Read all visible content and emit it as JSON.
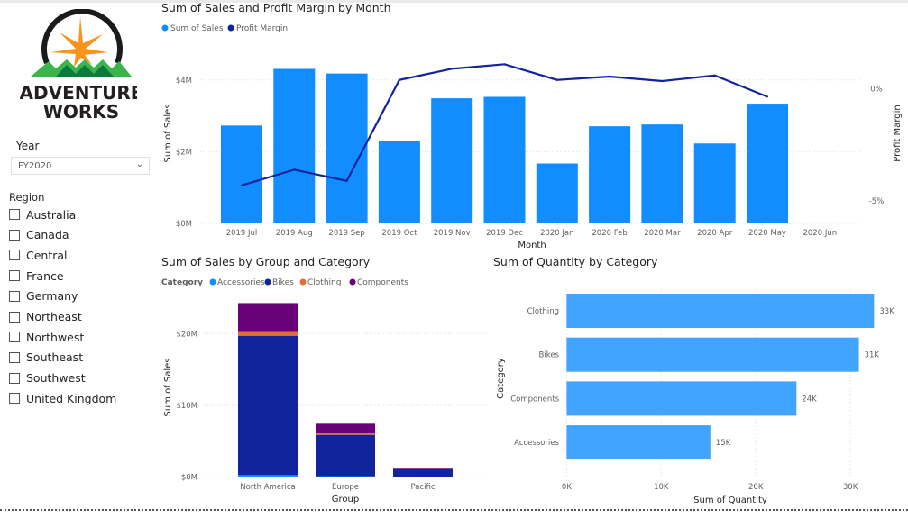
{
  "logo": {
    "line1": "ADVENTURE",
    "line2": "WORKS"
  },
  "slicers": {
    "year": {
      "label": "Year",
      "value": "FY2020"
    },
    "region": {
      "label": "Region",
      "items": [
        "Australia",
        "Canada",
        "Central",
        "France",
        "Germany",
        "Northeast",
        "Northwest",
        "Southeast",
        "Southwest",
        "United Kingdom"
      ]
    }
  },
  "colors": {
    "sales": "#118dff",
    "margin": "#12239e",
    "accessories": "#118dff",
    "bikes": "#12239e",
    "clothing": "#e66c37",
    "components": "#6b007b",
    "quantity": "#41a4ff"
  },
  "chart_data": [
    {
      "type": "bar+line",
      "title": "Sum of Sales and Profit Margin by Month",
      "legend": [
        "Sum of Sales",
        "Profit Margin"
      ],
      "legend_position": "top-left",
      "xlabel": "Month",
      "ylabel": "Sum of Sales",
      "y2label": "Profit Margin",
      "categories": [
        "2019 Jul",
        "2019 Aug",
        "2019 Sep",
        "2019 Oct",
        "2019 Nov",
        "2019 Dec",
        "2020 Jan",
        "2020 Feb",
        "2020 Mar",
        "2020 Apr",
        "2020 May",
        "2020 Jun"
      ],
      "series": [
        {
          "name": "Sum of Sales",
          "type": "bar",
          "unit": "$M",
          "values": [
            2.73,
            4.31,
            4.18,
            2.3,
            3.49,
            3.53,
            1.67,
            2.71,
            2.76,
            2.23,
            3.34,
            null
          ]
        },
        {
          "name": "Profit Margin",
          "type": "line",
          "unit": "%",
          "values": [
            -4.3,
            -3.6,
            -4.1,
            0.4,
            0.9,
            1.1,
            0.4,
            0.55,
            0.35,
            0.6,
            -0.35,
            null
          ]
        }
      ],
      "ylim": [
        0,
        4.85
      ],
      "yticks": [
        "$0M",
        "$2M",
        "$4M"
      ],
      "y2lim": [
        -6.0,
        1.75
      ],
      "y2ticks": [
        "-5%",
        "0%"
      ],
      "grid": true
    },
    {
      "type": "stacked-bar",
      "title": "Sum of Sales by Group and Category",
      "legend_title": "Category",
      "legend": [
        "Accessories",
        "Bikes",
        "Clothing",
        "Components"
      ],
      "legend_position": "top-left",
      "xlabel": "Group",
      "ylabel": "Sum of Sales",
      "categories": [
        "North America",
        "Europe",
        "Pacific"
      ],
      "series": [
        {
          "name": "Accessories",
          "values": [
            0.3,
            0.15,
            0.05
          ]
        },
        {
          "name": "Bikes",
          "values": [
            19.4,
            5.75,
            1.08
          ]
        },
        {
          "name": "Clothing",
          "values": [
            0.65,
            0.2,
            0.03
          ]
        },
        {
          "name": "Components",
          "values": [
            3.9,
            1.35,
            0.18
          ]
        }
      ],
      "unit": "$M",
      "ylim": [
        0,
        25
      ],
      "yticks": [
        "$0M",
        "$10M",
        "$20M"
      ],
      "grid": true
    },
    {
      "type": "horizontal-bar",
      "title": "Sum of Quantity by Category",
      "xlabel": "Sum of Quantity",
      "ylabel": "Category",
      "categories": [
        "Clothing",
        "Bikes",
        "Components",
        "Accessories"
      ],
      "values": [
        32.5,
        30.9,
        24.3,
        15.2
      ],
      "unit": "K",
      "data_labels": [
        "33K",
        "31K",
        "24K",
        "15K"
      ],
      "xlim": [
        0,
        33
      ],
      "xticks": [
        "0K",
        "10K",
        "20K",
        "30K"
      ],
      "grid": true
    }
  ]
}
